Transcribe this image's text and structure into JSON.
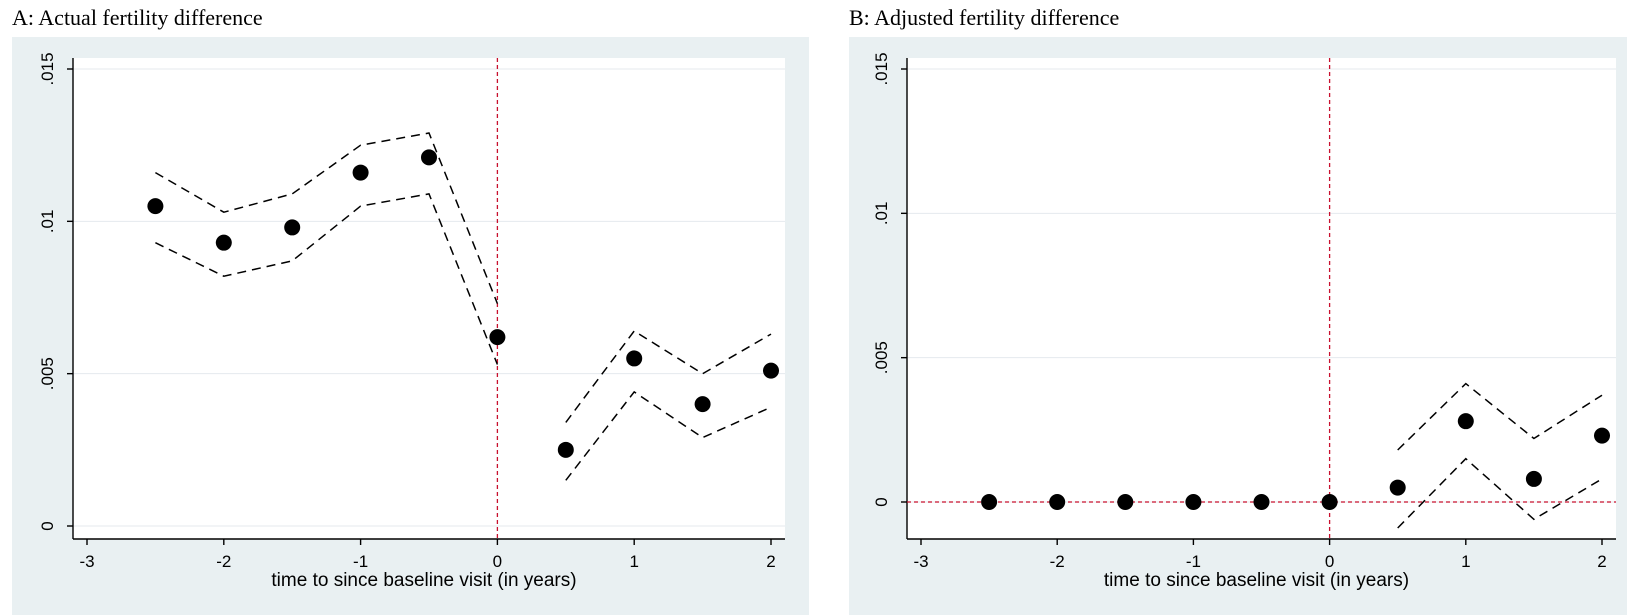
{
  "chart_data": [
    {
      "type": "scatter",
      "title": "A: Actual fertility difference",
      "xlabel": "time to since baseline visit (in years)",
      "ylabel": "",
      "xlim": [
        -3,
        2
      ],
      "ylim": [
        0,
        0.015
      ],
      "x_ticks": [
        -3,
        -2,
        -1,
        0,
        1,
        2
      ],
      "x_tick_labels": [
        "-3",
        "-2",
        "-1",
        "0",
        "1",
        "2"
      ],
      "y_ticks": [
        0,
        0.005,
        0.01,
        0.015
      ],
      "y_tick_labels": [
        "0",
        ".005",
        ".01",
        ".015"
      ],
      "grid": true,
      "reference_lines": {
        "vertical_x": 0,
        "horizontal_y": null,
        "color": "#c8102e"
      },
      "series": [
        {
          "role": "point estimate",
          "x": [
            -2.5,
            -2,
            -1.5,
            -1,
            -0.5,
            0,
            0.5,
            1,
            1.5,
            2
          ],
          "y": [
            0.0105,
            0.0093,
            0.0098,
            0.0116,
            0.0121,
            0.0062,
            0.0025,
            0.0055,
            0.004,
            0.0051
          ]
        },
        {
          "role": "upper confidence bound",
          "segments": [
            {
              "x": [
                -2.5,
                -2,
                -1.5,
                -1,
                -0.5,
                0
              ],
              "y": [
                0.0116,
                0.0103,
                0.0109,
                0.0125,
                0.0129,
                0.0073
              ]
            },
            {
              "x": [
                0.5,
                1,
                1.5,
                2
              ],
              "y": [
                0.0034,
                0.0064,
                0.005,
                0.0063
              ]
            }
          ]
        },
        {
          "role": "lower confidence bound",
          "segments": [
            {
              "x": [
                -2.5,
                -2,
                -1.5,
                -1,
                -0.5,
                0
              ],
              "y": [
                0.0093,
                0.0082,
                0.0087,
                0.0105,
                0.0109,
                0.0053
              ]
            },
            {
              "x": [
                0.5,
                1,
                1.5,
                2
              ],
              "y": [
                0.0015,
                0.0044,
                0.0029,
                0.0039
              ]
            }
          ]
        }
      ]
    },
    {
      "type": "scatter",
      "title": "B: Adjusted fertility difference",
      "xlabel": "time to since baseline visit (in years)",
      "ylabel": "",
      "xlim": [
        -3,
        2
      ],
      "ylim": [
        0,
        0.015
      ],
      "x_ticks": [
        -3,
        -2,
        -1,
        0,
        1,
        2
      ],
      "x_tick_labels": [
        "-3",
        "-2",
        "-1",
        "0",
        "1",
        "2"
      ],
      "y_ticks": [
        0,
        0.005,
        0.01,
        0.015
      ],
      "y_tick_labels": [
        "0",
        ".005",
        ".01",
        ".015"
      ],
      "grid": true,
      "reference_lines": {
        "vertical_x": 0,
        "horizontal_y": 0,
        "color": "#c8102e"
      },
      "series": [
        {
          "role": "point estimate",
          "x": [
            -2.5,
            -2,
            -1.5,
            -1,
            -0.5,
            0,
            0.5,
            1,
            1.5,
            2
          ],
          "y": [
            0,
            0,
            0,
            0,
            0,
            0,
            0.0005,
            0.0028,
            0.0008,
            0.0023
          ]
        },
        {
          "role": "upper confidence bound",
          "segments": [
            {
              "x": [
                0.5,
                1,
                1.5,
                2
              ],
              "y": [
                0.0018,
                0.0041,
                0.0022,
                0.0037
              ]
            }
          ]
        },
        {
          "role": "lower confidence bound",
          "segments": [
            {
              "x": [
                0.5,
                1,
                1.5,
                2
              ],
              "y": [
                -0.0009,
                0.0015,
                -0.0006,
                0.0008
              ]
            }
          ]
        }
      ]
    }
  ],
  "colors": {
    "outer_background": "#e9f0f2",
    "plot_background": "#ffffff",
    "grid": "#e4eaee",
    "reference_line": "#c8102e",
    "markers": "#000000",
    "confidence_band": "#000000"
  }
}
